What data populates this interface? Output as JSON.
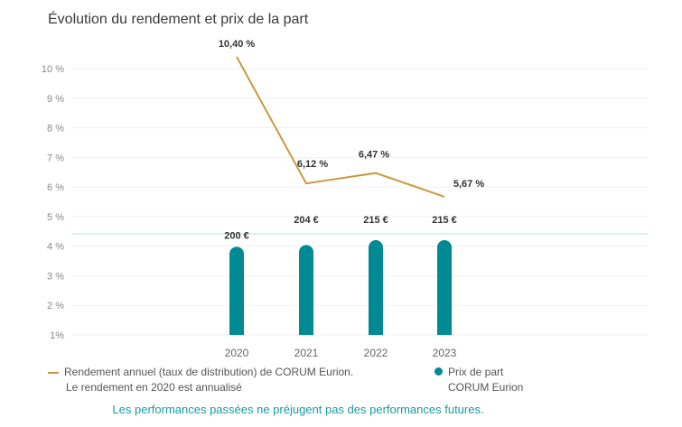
{
  "chart_data": {
    "type": "bar+line",
    "title": "Évolution du rendement et prix de la part",
    "categories": [
      "2020",
      "2021",
      "2022",
      "2023"
    ],
    "y_ticks": [
      "10 %",
      "9 %",
      "8 %",
      "7 %",
      "6 %",
      "5 %",
      "4 %",
      "3 %",
      "2 %",
      "1%"
    ],
    "ylim": [
      1,
      10
    ],
    "grid": true,
    "series": [
      {
        "name": "Rendement annuel (taux de distribution) de CORUM Eurion.",
        "type": "line",
        "values": [
          10.4,
          6.12,
          6.47,
          5.67
        ],
        "labels": [
          "10,40 %",
          "6,12 %",
          "6,47 %",
          "5,67 %"
        ],
        "color": "#c9993f"
      },
      {
        "name": "Prix de part CORUM Eurion",
        "type": "bar",
        "values": [
          200,
          204,
          215,
          215
        ],
        "labels": [
          "200 €",
          "204 €",
          "215 €",
          "215 €"
        ],
        "color": "#008a93"
      }
    ],
    "legend": {
      "placement": "bottom",
      "line_text_1": "Rendement annuel (taux de distribution) de CORUM Eurion.",
      "line_text_2": "Le rendement en 2020 est annualisé",
      "bar_text_1": "Prix de part",
      "bar_text_2": "CORUM Eurion"
    },
    "footnote": "Les performances passées ne préjugent pas des performances futures."
  }
}
